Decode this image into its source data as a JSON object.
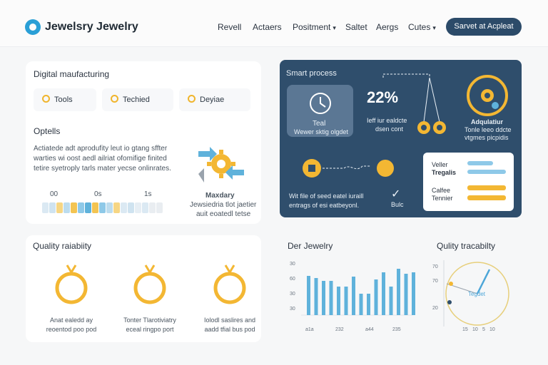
{
  "header": {
    "brand": "Jewelsry Jewelry",
    "nav": [
      "Revell",
      "Actaers",
      "Positment",
      "Saltet",
      "Aergs",
      "Cutes"
    ],
    "cta": "Sarvet at Acpleat"
  },
  "digital": {
    "title": "Digital maufacturing",
    "pills": [
      "Tools",
      "Techied",
      "Deyiae"
    ],
    "options_title": "Optells",
    "options_text": [
      "Actiatede adt aprodufity leut io gtang sffter",
      "warties wi oost aedl ailriat ofomifige finited",
      "tetire syetroply tarls mater yecse onlinrates."
    ],
    "scale": [
      "00",
      "0s",
      "1s"
    ],
    "gear_caption": [
      "Maxdary",
      "Jewsiedria tlot jaetier",
      "auit eoatedl tetse"
    ]
  },
  "smart": {
    "title": "Smart process",
    "tool_label": "Teal",
    "tool_sub": "Wewer sktig olgdet",
    "percent": "22%",
    "percent_note": [
      "Ieff iur ealdcte",
      "dsen cont"
    ],
    "ring_caption": [
      "Adqulatiur",
      "Tonle leeo ddcte",
      "vtgmes picpidis"
    ],
    "info_list": [
      "Veller",
      "Tregalis",
      "Calfee",
      "Tennier"
    ],
    "note": [
      "Wit file of seed eatel iuraill",
      "entrags of esi eatbeyonl."
    ],
    "note_tag": "Bulc"
  },
  "quality": {
    "title": "Quality raiabiity",
    "items": [
      {
        "line1": "Anat ealedd ay",
        "line2": "reoentod poo pod"
      },
      {
        "line1": "Tonter Tlarotiviatry",
        "line2": "eceal ringpo port"
      },
      {
        "line1": "Iolodl saslires and",
        "line2": "aadd tfial bus pod"
      }
    ]
  },
  "chart": {
    "title": "Der Jewelry",
    "ylabels": [
      "30",
      "60",
      "30",
      "30"
    ],
    "xlabels": [
      "a1a",
      "232",
      "a44",
      "235"
    ]
  },
  "chart_data": {
    "type": "bar",
    "title": "Der Jewelry",
    "categories": [
      "a1a",
      "",
      "",
      "",
      "232",
      "",
      "",
      "",
      "a44",
      "",
      "",
      "",
      "235",
      "",
      ""
    ],
    "values": [
      55,
      52,
      48,
      48,
      40,
      40,
      54,
      30,
      30,
      50,
      60,
      40,
      65,
      58,
      60
    ],
    "ylim": [
      0,
      70
    ]
  },
  "trace": {
    "title": "Qulity tracabilty",
    "ylabels": [
      "70",
      "70",
      "20"
    ],
    "center_label": "Tegdet",
    "xlabels": [
      "15",
      "10",
      "5",
      "10"
    ]
  },
  "colors": {
    "accent": "#2c4b69",
    "gold": "#f0b52d",
    "blue": "#5fb2db"
  }
}
